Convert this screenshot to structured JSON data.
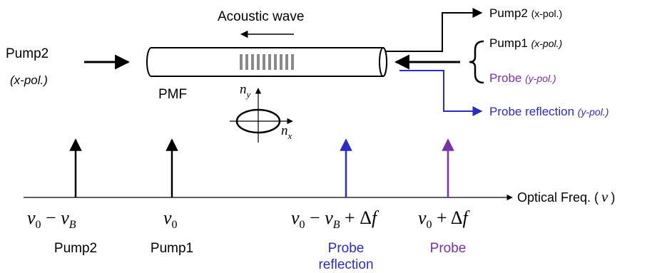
{
  "diagram": {
    "top": {
      "acoustic_wave": "Acoustic wave",
      "pump2_left": {
        "name": "Pump2",
        "pol": "(x-pol.)"
      },
      "pmf": "PMF",
      "axes": {
        "ny": "n",
        "ny_sub": "y",
        "nx": "n",
        "nx_sub": "x"
      },
      "right": {
        "pump2": {
          "name": "Pump2 ",
          "pol": "(x-pol.)"
        },
        "pump1": {
          "name": "Pump1 ",
          "pol": "(x-pol.)"
        },
        "probe": {
          "name": "Probe ",
          "pol": "(y-pol.)"
        },
        "probe_reflection": {
          "name": "Probe reflection ",
          "pol": "(y-pol.)"
        }
      }
    },
    "spectrum": {
      "axis_label": "Optical Freq. (",
      "axis_symbol": "ν",
      "axis_close": ")",
      "lines": [
        {
          "id": "pump2",
          "formula": "ν0 − νB",
          "label": "Pump2",
          "label2": "",
          "color": "#000000"
        },
        {
          "id": "pump1",
          "formula": "ν0",
          "label": "Pump1",
          "label2": "",
          "color": "#000000"
        },
        {
          "id": "probe-reflection",
          "formula": "ν0 − νB + Δf",
          "label": "Probe",
          "label2": "reflection",
          "color": "#2b2bc9"
        },
        {
          "id": "probe",
          "formula": "ν0 + Δf",
          "label": "Probe",
          "label2": "",
          "color": "#7a30a6"
        }
      ]
    },
    "colors": {
      "black": "#000000",
      "blue": "#2b2bc9",
      "purple": "#7a30a6",
      "grating": "#8a8a8a"
    }
  }
}
